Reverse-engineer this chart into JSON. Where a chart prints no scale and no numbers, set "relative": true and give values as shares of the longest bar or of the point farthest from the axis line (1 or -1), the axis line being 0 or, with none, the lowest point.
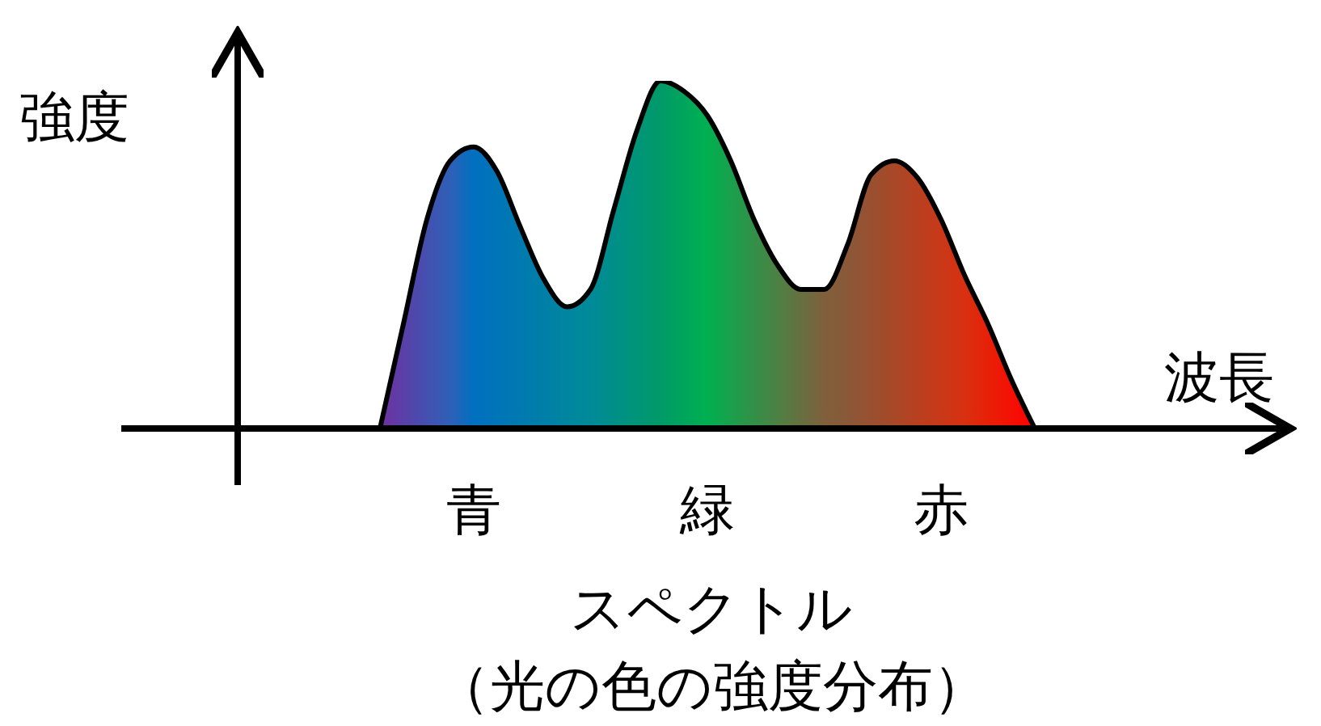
{
  "chart_data": {
    "type": "area",
    "relative": true,
    "ylabel": "強度",
    "xlabel": "波長",
    "categories": [
      null,
      null,
      null,
      null,
      "青",
      null,
      null,
      null,
      null,
      null,
      null,
      null,
      null,
      null,
      "緑",
      null,
      null,
      null,
      null,
      null,
      null,
      null,
      null,
      null,
      "赤",
      null,
      null,
      null,
      null
    ],
    "values": [
      0,
      0.3,
      0.6,
      0.77,
      0.81,
      0.74,
      0.58,
      0.43,
      0.35,
      0.4,
      0.63,
      0.86,
      1,
      0.97,
      0.9,
      0.77,
      0.6,
      0.47,
      0.4,
      0.4,
      0.53,
      0.73,
      0.77,
      0.72,
      0.6,
      0.44,
      0.3,
      0.14,
      0
    ],
    "colors": [
      "#7030a0",
      "#5a40a8",
      "#4450b0",
      "#2e60b8",
      "#0070c0",
      "#0075b8",
      "#007ab0",
      "#007fa8",
      "#0085a0",
      "#008a98",
      "#008f88",
      "#009578",
      "#009a68",
      "#00a55c",
      "#00b050",
      "#1aa04c",
      "#339048",
      "#4d8044",
      "#667040",
      "#80603c",
      "#8a5838",
      "#995030",
      "#a84828",
      "#b84020",
      "#c83818",
      "#d83010",
      "#e82008",
      "#f41004",
      "#ff0000"
    ],
    "annotations": [
      "スペクトル",
      "（光の色の強度分布）"
    ]
  }
}
